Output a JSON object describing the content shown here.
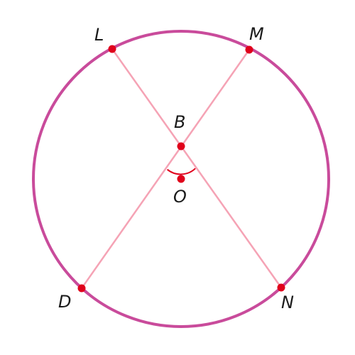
{
  "diagram": {
    "colors": {
      "circle": "#c94b9b",
      "chords": "#f5a3b5",
      "points": "#e0001b",
      "angle_arc": "#e0001b",
      "labels": "#1a1a1a"
    },
    "points": [
      {
        "id": "L",
        "label": "L",
        "on": "circle"
      },
      {
        "id": "M",
        "label": "M",
        "on": "circle"
      },
      {
        "id": "B",
        "label": "B",
        "on": "chord-intersection"
      },
      {
        "id": "O",
        "label": "O",
        "on": "center"
      },
      {
        "id": "D",
        "label": "D",
        "on": "circle"
      },
      {
        "id": "N",
        "label": "N",
        "on": "circle"
      }
    ],
    "chords": [
      {
        "from": "L",
        "to": "N"
      },
      {
        "from": "M",
        "to": "D"
      }
    ],
    "angle_mark": {
      "vertex": "B",
      "between": [
        "D",
        "N"
      ]
    }
  }
}
